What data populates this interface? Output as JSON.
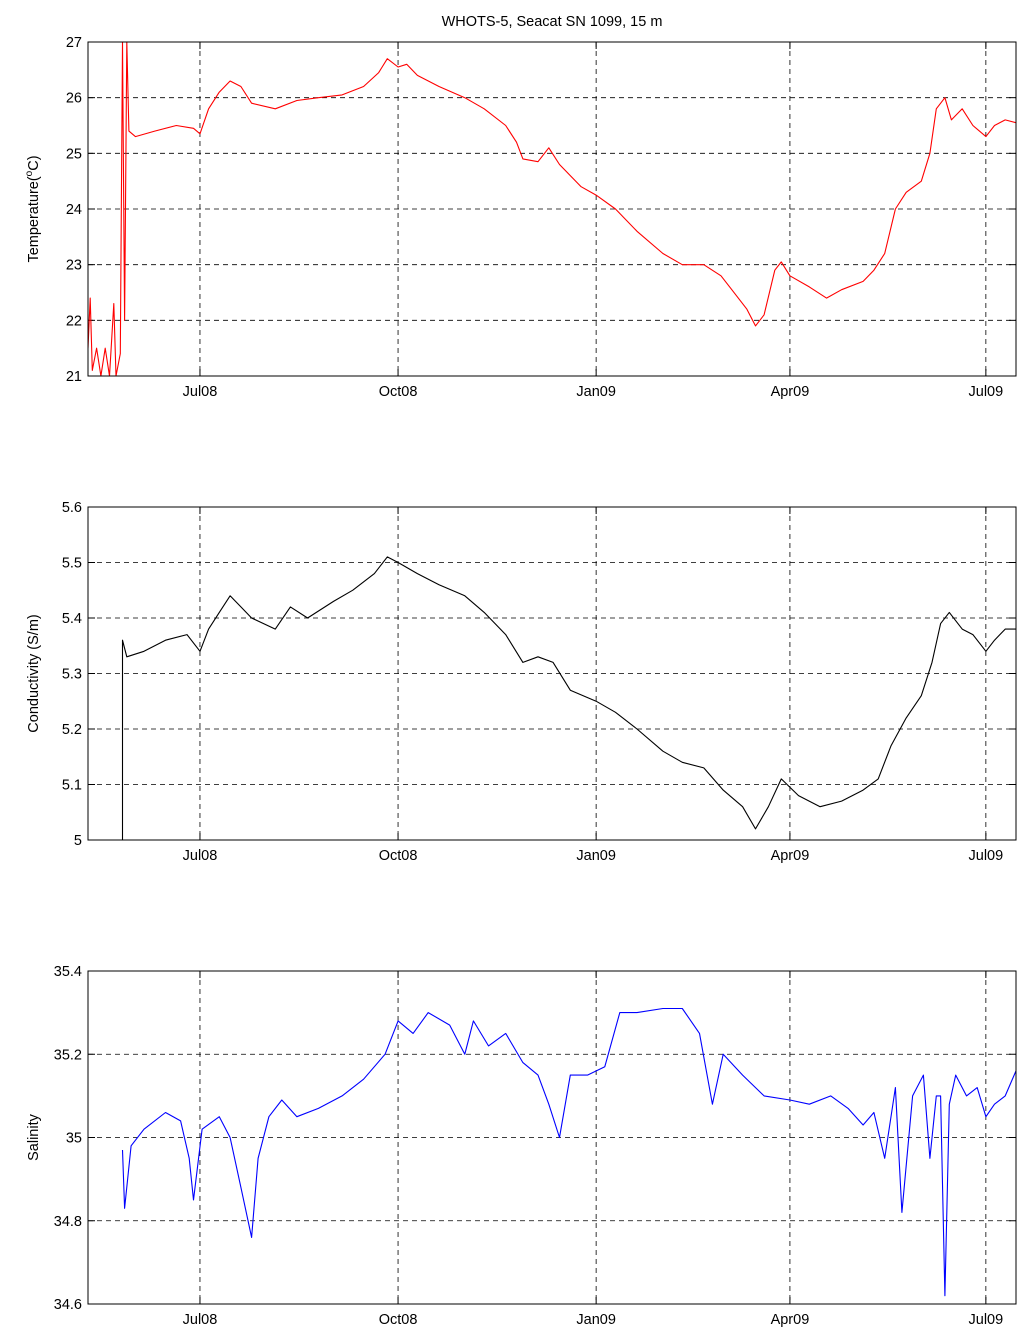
{
  "figure": {
    "title": "WHOTS-5, Seacat SN 1099, 15 m"
  },
  "chart_data": [
    {
      "type": "line",
      "title": "WHOTS-5, Seacat SN 1099, 15 m",
      "xlabel": "",
      "ylabel": "Temperature(°C)",
      "ylabel_main": "Temperature(",
      "ylabel_sup": "o",
      "ylabel_end": "C)",
      "xlim": [
        "2008-05-10",
        "2009-07-15"
      ],
      "ylim": [
        21,
        27
      ],
      "xticks": [
        {
          "label": "Jul08",
          "date": "2008-07-01"
        },
        {
          "label": "Oct08",
          "date": "2008-10-01"
        },
        {
          "label": "Jan09",
          "date": "2009-01-01"
        },
        {
          "label": "Apr09",
          "date": "2009-04-01"
        },
        {
          "label": "Jul09",
          "date": "2009-07-01"
        }
      ],
      "yticks": [
        "21",
        "22",
        "23",
        "24",
        "25",
        "26",
        "27"
      ],
      "grid": true,
      "series": [
        {
          "color": "#ff0000",
          "points": [
            [
              "2008-05-10",
              21.5
            ],
            [
              "2008-05-11",
              22.4
            ],
            [
              "2008-05-12",
              21.1
            ],
            [
              "2008-05-14",
              21.5
            ],
            [
              "2008-05-16",
              21.0
            ],
            [
              "2008-05-18",
              21.5
            ],
            [
              "2008-05-20",
              21.0
            ],
            [
              "2008-05-22",
              22.3
            ],
            [
              "2008-05-23",
              21.0
            ],
            [
              "2008-05-25",
              21.4
            ],
            [
              "2008-05-26",
              27.0
            ],
            [
              "2008-05-27",
              22.0
            ],
            [
              "2008-05-28",
              27.0
            ],
            [
              "2008-05-29",
              25.4
            ],
            [
              "2008-06-01",
              25.3
            ],
            [
              "2008-06-10",
              25.4
            ],
            [
              "2008-06-20",
              25.5
            ],
            [
              "2008-06-28",
              25.45
            ],
            [
              "2008-07-01",
              25.35
            ],
            [
              "2008-07-05",
              25.8
            ],
            [
              "2008-07-10",
              26.1
            ],
            [
              "2008-07-15",
              26.3
            ],
            [
              "2008-07-20",
              26.2
            ],
            [
              "2008-07-25",
              25.9
            ],
            [
              "2008-08-05",
              25.8
            ],
            [
              "2008-08-15",
              25.95
            ],
            [
              "2008-08-25",
              26.0
            ],
            [
              "2008-09-05",
              26.05
            ],
            [
              "2008-09-15",
              26.2
            ],
            [
              "2008-09-22",
              26.45
            ],
            [
              "2008-09-26",
              26.7
            ],
            [
              "2008-10-01",
              26.55
            ],
            [
              "2008-10-05",
              26.6
            ],
            [
              "2008-10-10",
              26.4
            ],
            [
              "2008-10-20",
              26.2
            ],
            [
              "2008-11-01",
              26.0
            ],
            [
              "2008-11-10",
              25.8
            ],
            [
              "2008-11-20",
              25.5
            ],
            [
              "2008-11-25",
              25.2
            ],
            [
              "2008-11-28",
              24.9
            ],
            [
              "2008-12-05",
              24.85
            ],
            [
              "2008-12-10",
              25.1
            ],
            [
              "2008-12-15",
              24.8
            ],
            [
              "2008-12-25",
              24.4
            ],
            [
              "2009-01-01",
              24.25
            ],
            [
              "2009-01-10",
              24.0
            ],
            [
              "2009-01-20",
              23.6
            ],
            [
              "2009-02-01",
              23.2
            ],
            [
              "2009-02-10",
              23.0
            ],
            [
              "2009-02-20",
              23.0
            ],
            [
              "2009-02-28",
              22.8
            ],
            [
              "2009-03-05",
              22.55
            ],
            [
              "2009-03-12",
              22.2
            ],
            [
              "2009-03-16",
              21.9
            ],
            [
              "2009-03-20",
              22.1
            ],
            [
              "2009-03-25",
              22.9
            ],
            [
              "2009-03-28",
              23.05
            ],
            [
              "2009-04-01",
              22.8
            ],
            [
              "2009-04-10",
              22.6
            ],
            [
              "2009-04-18",
              22.4
            ],
            [
              "2009-04-25",
              22.55
            ],
            [
              "2009-05-05",
              22.7
            ],
            [
              "2009-05-10",
              22.9
            ],
            [
              "2009-05-15",
              23.2
            ],
            [
              "2009-05-20",
              24.0
            ],
            [
              "2009-05-25",
              24.3
            ],
            [
              "2009-06-01",
              24.5
            ],
            [
              "2009-06-05",
              25.0
            ],
            [
              "2009-06-08",
              25.8
            ],
            [
              "2009-06-12",
              26.0
            ],
            [
              "2009-06-15",
              25.6
            ],
            [
              "2009-06-20",
              25.8
            ],
            [
              "2009-06-25",
              25.5
            ],
            [
              "2009-07-01",
              25.3
            ],
            [
              "2009-07-05",
              25.5
            ],
            [
              "2009-07-10",
              25.6
            ],
            [
              "2009-07-15",
              25.55
            ]
          ]
        }
      ]
    },
    {
      "type": "line",
      "title": "",
      "xlabel": "",
      "ylabel": "Conductivity (S/m)",
      "xlim": [
        "2008-05-10",
        "2009-07-15"
      ],
      "ylim": [
        5,
        5.6
      ],
      "xticks": [
        {
          "label": "Jul08",
          "date": "2008-07-01"
        },
        {
          "label": "Oct08",
          "date": "2008-10-01"
        },
        {
          "label": "Jan09",
          "date": "2009-01-01"
        },
        {
          "label": "Apr09",
          "date": "2009-04-01"
        },
        {
          "label": "Jul09",
          "date": "2009-07-01"
        }
      ],
      "yticks": [
        "5",
        "5.1",
        "5.2",
        "5.3",
        "5.4",
        "5.5",
        "5.6"
      ],
      "grid": true,
      "series": [
        {
          "color": "#000000",
          "points": [
            [
              "2008-05-26",
              5.0
            ],
            [
              "2008-05-26",
              5.36
            ],
            [
              "2008-05-28",
              5.33
            ],
            [
              "2008-06-05",
              5.34
            ],
            [
              "2008-06-15",
              5.36
            ],
            [
              "2008-06-25",
              5.37
            ],
            [
              "2008-07-01",
              5.34
            ],
            [
              "2008-07-05",
              5.38
            ],
            [
              "2008-07-10",
              5.41
            ],
            [
              "2008-07-15",
              5.44
            ],
            [
              "2008-07-20",
              5.42
            ],
            [
              "2008-07-25",
              5.4
            ],
            [
              "2008-08-05",
              5.38
            ],
            [
              "2008-08-12",
              5.42
            ],
            [
              "2008-08-20",
              5.4
            ],
            [
              "2008-09-01",
              5.43
            ],
            [
              "2008-09-10",
              5.45
            ],
            [
              "2008-09-20",
              5.48
            ],
            [
              "2008-09-26",
              5.51
            ],
            [
              "2008-10-01",
              5.5
            ],
            [
              "2008-10-10",
              5.48
            ],
            [
              "2008-10-20",
              5.46
            ],
            [
              "2008-11-01",
              5.44
            ],
            [
              "2008-11-10",
              5.41
            ],
            [
              "2008-11-20",
              5.37
            ],
            [
              "2008-11-28",
              5.32
            ],
            [
              "2008-12-05",
              5.33
            ],
            [
              "2008-12-12",
              5.32
            ],
            [
              "2008-12-20",
              5.27
            ],
            [
              "2009-01-01",
              5.25
            ],
            [
              "2009-01-10",
              5.23
            ],
            [
              "2009-01-20",
              5.2
            ],
            [
              "2009-02-01",
              5.16
            ],
            [
              "2009-02-10",
              5.14
            ],
            [
              "2009-02-20",
              5.13
            ],
            [
              "2009-03-01",
              5.09
            ],
            [
              "2009-03-10",
              5.06
            ],
            [
              "2009-03-16",
              5.02
            ],
            [
              "2009-03-22",
              5.06
            ],
            [
              "2009-03-28",
              5.11
            ],
            [
              "2009-04-05",
              5.08
            ],
            [
              "2009-04-15",
              5.06
            ],
            [
              "2009-04-25",
              5.07
            ],
            [
              "2009-05-05",
              5.09
            ],
            [
              "2009-05-12",
              5.11
            ],
            [
              "2009-05-18",
              5.17
            ],
            [
              "2009-05-25",
              5.22
            ],
            [
              "2009-06-01",
              5.26
            ],
            [
              "2009-06-06",
              5.32
            ],
            [
              "2009-06-10",
              5.39
            ],
            [
              "2009-06-14",
              5.41
            ],
            [
              "2009-06-20",
              5.38
            ],
            [
              "2009-06-25",
              5.37
            ],
            [
              "2009-07-01",
              5.34
            ],
            [
              "2009-07-05",
              5.36
            ],
            [
              "2009-07-10",
              5.38
            ],
            [
              "2009-07-15",
              5.38
            ]
          ]
        }
      ]
    },
    {
      "type": "line",
      "title": "",
      "xlabel": "",
      "ylabel": "Salinity",
      "xlim": [
        "2008-05-10",
        "2009-07-15"
      ],
      "ylim": [
        34.6,
        35.4
      ],
      "xticks": [
        {
          "label": "Jul08",
          "date": "2008-07-01"
        },
        {
          "label": "Oct08",
          "date": "2008-10-01"
        },
        {
          "label": "Jan09",
          "date": "2009-01-01"
        },
        {
          "label": "Apr09",
          "date": "2009-04-01"
        },
        {
          "label": "Jul09",
          "date": "2009-07-01"
        }
      ],
      "yticks": [
        "34.6",
        "34.8",
        "35",
        "35.2",
        "35.4"
      ],
      "grid": true,
      "series": [
        {
          "color": "#0000ff",
          "points": [
            [
              "2008-05-26",
              34.97
            ],
            [
              "2008-05-27",
              34.83
            ],
            [
              "2008-05-30",
              34.98
            ],
            [
              "2008-06-05",
              35.02
            ],
            [
              "2008-06-15",
              35.06
            ],
            [
              "2008-06-22",
              35.04
            ],
            [
              "2008-06-26",
              34.95
            ],
            [
              "2008-06-28",
              34.85
            ],
            [
              "2008-07-02",
              35.02
            ],
            [
              "2008-07-10",
              35.05
            ],
            [
              "2008-07-15",
              35.0
            ],
            [
              "2008-07-20",
              34.88
            ],
            [
              "2008-07-25",
              34.76
            ],
            [
              "2008-07-28",
              34.95
            ],
            [
              "2008-08-02",
              35.05
            ],
            [
              "2008-08-08",
              35.09
            ],
            [
              "2008-08-15",
              35.05
            ],
            [
              "2008-08-25",
              35.07
            ],
            [
              "2008-09-05",
              35.1
            ],
            [
              "2008-09-15",
              35.14
            ],
            [
              "2008-09-25",
              35.2
            ],
            [
              "2008-10-01",
              35.28
            ],
            [
              "2008-10-08",
              35.25
            ],
            [
              "2008-10-15",
              35.3
            ],
            [
              "2008-10-25",
              35.27
            ],
            [
              "2008-11-01",
              35.2
            ],
            [
              "2008-11-05",
              35.28
            ],
            [
              "2008-11-12",
              35.22
            ],
            [
              "2008-11-20",
              35.25
            ],
            [
              "2008-11-28",
              35.18
            ],
            [
              "2008-12-05",
              35.15
            ],
            [
              "2008-12-10",
              35.08
            ],
            [
              "2008-12-15",
              35.0
            ],
            [
              "2008-12-20",
              35.15
            ],
            [
              "2008-12-28",
              35.15
            ],
            [
              "2009-01-05",
              35.17
            ],
            [
              "2009-01-12",
              35.3
            ],
            [
              "2009-01-20",
              35.3
            ],
            [
              "2009-02-01",
              35.31
            ],
            [
              "2009-02-10",
              35.31
            ],
            [
              "2009-02-18",
              35.25
            ],
            [
              "2009-02-24",
              35.08
            ],
            [
              "2009-03-01",
              35.2
            ],
            [
              "2009-03-10",
              35.15
            ],
            [
              "2009-03-20",
              35.1
            ],
            [
              "2009-04-01",
              35.09
            ],
            [
              "2009-04-10",
              35.08
            ],
            [
              "2009-04-20",
              35.1
            ],
            [
              "2009-04-28",
              35.07
            ],
            [
              "2009-05-05",
              35.03
            ],
            [
              "2009-05-10",
              35.06
            ],
            [
              "2009-05-15",
              34.95
            ],
            [
              "2009-05-20",
              35.12
            ],
            [
              "2009-05-23",
              34.82
            ],
            [
              "2009-05-28",
              35.1
            ],
            [
              "2009-06-02",
              35.15
            ],
            [
              "2009-06-05",
              34.95
            ],
            [
              "2009-06-08",
              35.1
            ],
            [
              "2009-06-10",
              35.1
            ],
            [
              "2009-06-12",
              34.62
            ],
            [
              "2009-06-14",
              35.08
            ],
            [
              "2009-06-17",
              35.15
            ],
            [
              "2009-06-22",
              35.1
            ],
            [
              "2009-06-27",
              35.12
            ],
            [
              "2009-07-01",
              35.05
            ],
            [
              "2009-07-05",
              35.08
            ],
            [
              "2009-07-10",
              35.1
            ],
            [
              "2009-07-15",
              35.16
            ]
          ]
        }
      ]
    }
  ]
}
